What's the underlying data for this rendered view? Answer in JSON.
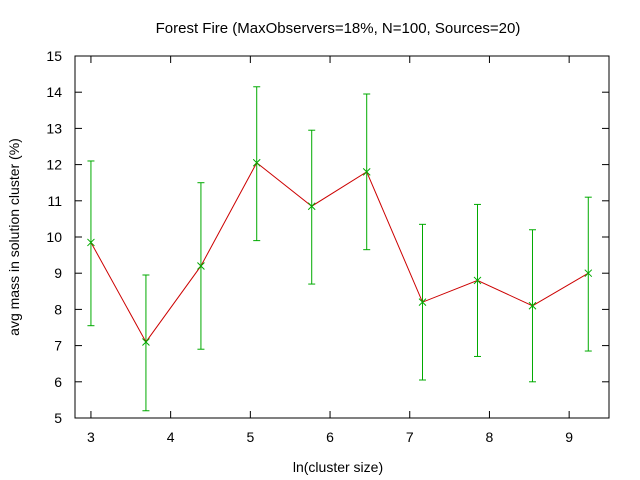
{
  "chart_data": {
    "type": "line",
    "title": "Forest Fire (MaxObservers=18%, N=100, Sources=20)",
    "xlabel": "ln(cluster size)",
    "ylabel": "avg mass in solution cluster (%)",
    "xlim": [
      2.8,
      9.5
    ],
    "ylim": [
      5,
      15
    ],
    "xticks": [
      3,
      4,
      5,
      6,
      7,
      8,
      9
    ],
    "yticks": [
      5,
      6,
      7,
      8,
      9,
      10,
      11,
      12,
      13,
      14,
      15
    ],
    "grid": false,
    "legend": "none",
    "line_color": "#cc0000",
    "errorbar_color": "#00aa00",
    "series": [
      {
        "x": [
          3.0,
          3.69,
          4.38,
          5.08,
          5.77,
          6.46,
          7.16,
          7.85,
          8.54,
          9.24
        ],
        "y": [
          9.85,
          7.1,
          9.2,
          12.05,
          10.85,
          11.8,
          8.2,
          8.8,
          8.1,
          9.0
        ],
        "y_low": [
          7.55,
          5.2,
          6.9,
          9.9,
          8.7,
          9.65,
          6.05,
          6.7,
          6.0,
          6.85
        ],
        "y_high": [
          12.1,
          8.95,
          11.5,
          14.15,
          12.95,
          13.95,
          10.35,
          10.9,
          10.2,
          11.1
        ]
      }
    ]
  }
}
